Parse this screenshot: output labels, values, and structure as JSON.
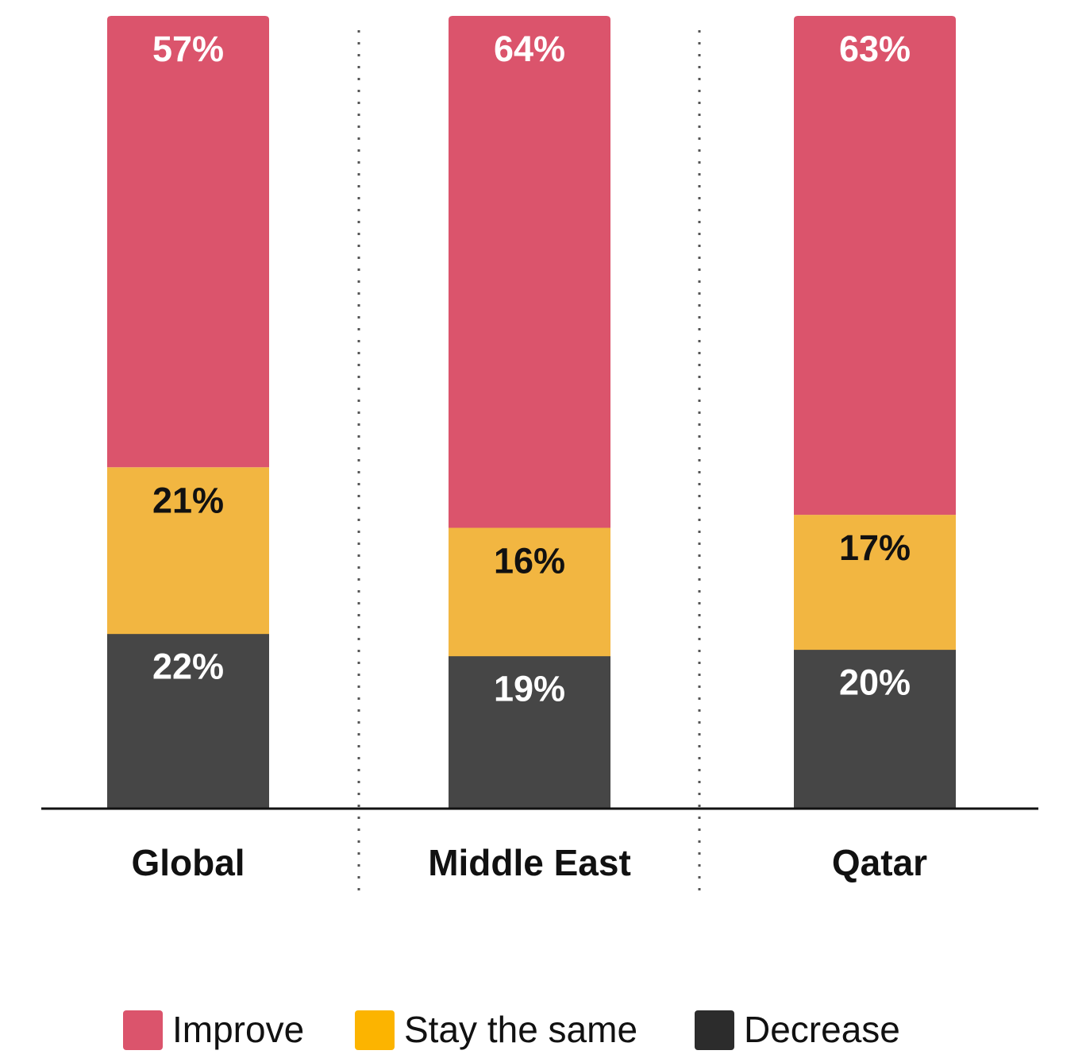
{
  "chart_data": {
    "type": "bar",
    "stacked": true,
    "categories": [
      "Global",
      "Middle East",
      "Qatar"
    ],
    "series": [
      {
        "name": "Decrease",
        "values": [
          22,
          19,
          20
        ],
        "labels": [
          "22%",
          "19%",
          "20%"
        ],
        "color": "#464646",
        "label_color": "#ffffff"
      },
      {
        "name": "Stay the same",
        "values": [
          21,
          16,
          17
        ],
        "labels": [
          "21%",
          "16%",
          "17%"
        ],
        "color": "#f2b641",
        "label_color": "#111111"
      },
      {
        "name": "Improve",
        "values": [
          57,
          64,
          63
        ],
        "labels": [
          "57%",
          "64%",
          "63%"
        ],
        "color": "#db546c",
        "label_color": "#ffffff"
      }
    ],
    "ylim": [
      0,
      100
    ],
    "grid": false,
    "category_separators": "dotted",
    "legend_position": "bottom",
    "legend": [
      {
        "label": "Improve",
        "color": "#db546c"
      },
      {
        "label": "Stay the same",
        "color": "#fcb400"
      },
      {
        "label": "Decrease",
        "color": "#2c2c2c"
      }
    ]
  }
}
